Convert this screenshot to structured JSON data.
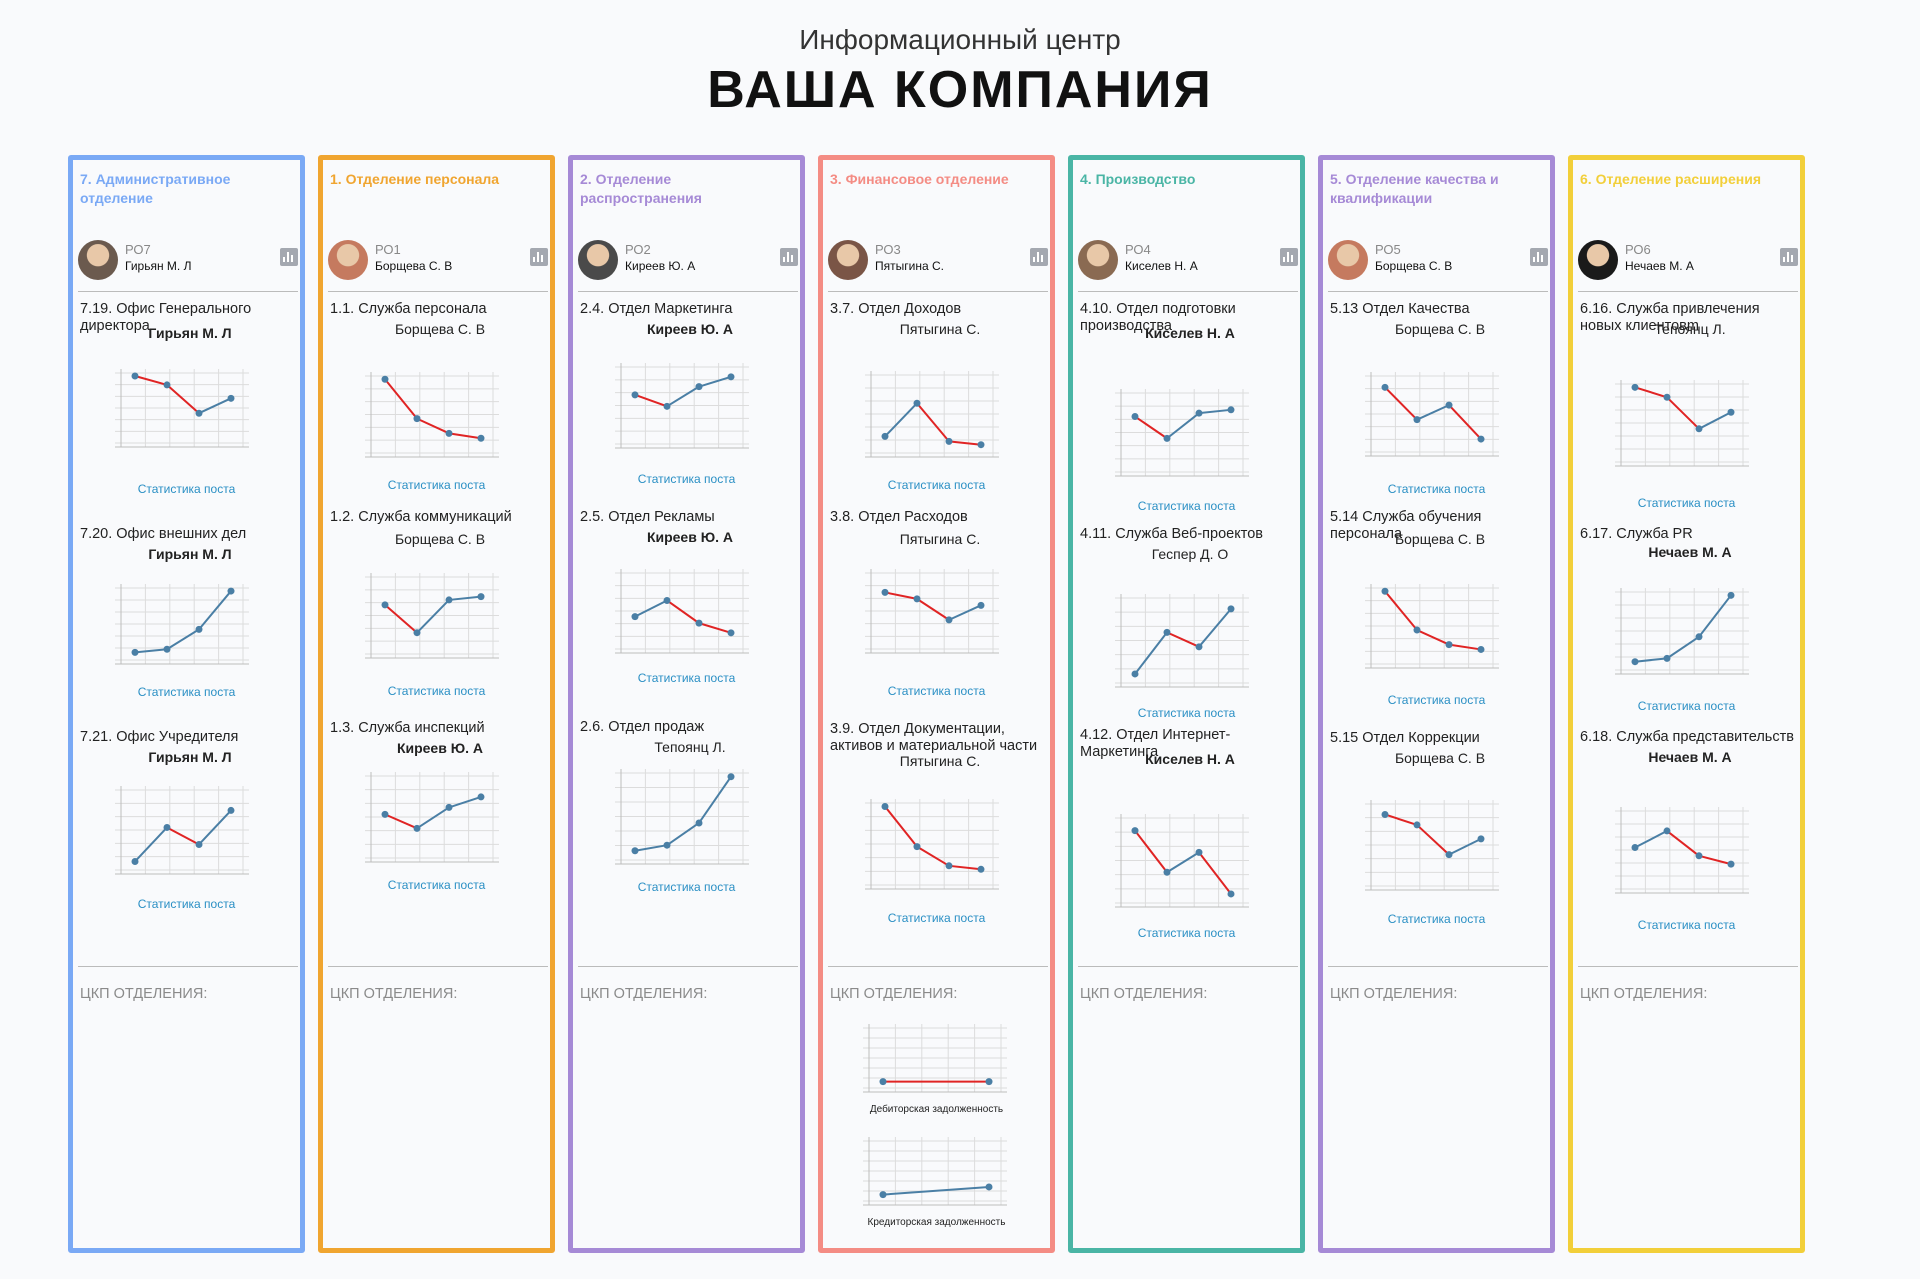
{
  "header": {
    "subtitle": "Информационный центр",
    "title": "ВАША КОМПАНИЯ"
  },
  "stat_caption": "Статистика поста",
  "ckp_label": "ЦКП ОТДЕЛЕНИЯ:",
  "colors": {
    "rise": "#4a7fa5",
    "fall": "#e02424",
    "link": "#2a8fc4"
  },
  "columns": [
    {
      "dept": "7. Административное отделение",
      "color": "#7aa9f5",
      "post_code": "РО7",
      "person": "Гирьян М. Л",
      "avatar_icon": "avatar-photo",
      "posts": [
        {
          "title": "7.19. Офис Генерального директора",
          "person": "Гирьян М. Л",
          "values": [
            5,
            4.4,
            2.5,
            3.5
          ]
        },
        {
          "title": "7.20. Офис внешних дел",
          "person": "Гирьян М. Л",
          "values": [
            1,
            1.2,
            2.5,
            5
          ]
        },
        {
          "title": "7.21. Офис Учредителя",
          "person": "Гирьян М. Л",
          "values": [
            1,
            3,
            2,
            4
          ]
        }
      ]
    },
    {
      "dept": "1. Отделение персонала",
      "color": "#f0a530",
      "post_code": "РО1",
      "person": "Борщева С. В",
      "avatar_icon": "avatar-photo",
      "posts": [
        {
          "title": "1.1. Служба персонала",
          "person": "Борщева С. В",
          "values": [
            5,
            2.6,
            1.7,
            1.4
          ]
        },
        {
          "title": "1.2. Служба коммуникаций",
          "person": "Борщева С. В",
          "values": [
            3.5,
            1.8,
            3.8,
            4
          ]
        },
        {
          "title": "1.3. Служба инспекций",
          "person": "Киреев Ю. А",
          "values": [
            3,
            2.2,
            3.4,
            4
          ]
        }
      ]
    },
    {
      "dept": "2. Отделение распространения",
      "color": "#a68ad6",
      "post_code": "РО2",
      "person": "Киреев Ю. А",
      "avatar_icon": "avatar-photo",
      "posts": [
        {
          "title": "2.4. Отдел Маркетинга",
          "person": "Киреев Ю. А",
          "values": [
            3.5,
            2.8,
            4,
            4.6
          ]
        },
        {
          "title": "2.5. Отдел Рекламы",
          "person": "Киреев Ю. А",
          "values": [
            2.5,
            3.5,
            2.1,
            1.5
          ]
        },
        {
          "title": "2.6. Отдел продаж",
          "person": "Тепоянц Л.",
          "values": [
            1,
            1.3,
            2.5,
            5
          ]
        }
      ]
    },
    {
      "dept": "3. Финансовое отделение",
      "color": "#f48c84",
      "post_code": "РО3",
      "person": "Пятыгина С.",
      "avatar_icon": "avatar-photo",
      "posts": [
        {
          "title": "3.7. Отдел Доходов",
          "person": "Пятыгина С.",
          "values": [
            1.5,
            3.5,
            1.2,
            1
          ]
        },
        {
          "title": "3.8. Отдел Расходов",
          "person": "Пятыгина С.",
          "values": [
            4,
            3.6,
            2.3,
            3.2
          ]
        },
        {
          "title": "3.9. Отдел Документации, активов и материальной части",
          "person": "Пятыгина С.",
          "values": [
            5,
            2.7,
            1.6,
            1.4
          ]
        }
      ],
      "ckp_charts": [
        {
          "title": "Дебиторская задолженность",
          "values": [
            1,
            1
          ]
        },
        {
          "title": "Кредиторская задолженность",
          "values": [
            1,
            1.6
          ]
        }
      ]
    },
    {
      "dept": "4. Производство",
      "color": "#4ab5a5",
      "post_code": "РО4",
      "person": "Киселев Н. А",
      "avatar_icon": "avatar-photo",
      "posts": [
        {
          "title": "4.10. Отдел подготовки производства",
          "person": "Киселев Н. А",
          "values": [
            3.8,
            2.5,
            4,
            4.2
          ]
        },
        {
          "title": "4.11. Служба Веб-проектов",
          "person": "Геспер Д. О",
          "values": [
            1,
            3.3,
            2.5,
            4.6
          ]
        },
        {
          "title": "4.12. Отдел Интернет-Маркетинга",
          "person": "Киселев Н. А",
          "values": [
            4.5,
            2.2,
            3.3,
            1
          ]
        }
      ]
    },
    {
      "dept": "5. Отделение качества и квалификации",
      "color": "#a68ad6",
      "post_code": "РО5",
      "person": "Борщева С. В",
      "avatar_icon": "avatar-photo",
      "posts": [
        {
          "title": "5.13 Отдел Качества",
          "person": "Борщева С. В",
          "values": [
            4.5,
            2.5,
            3.4,
            1.3
          ]
        },
        {
          "title": "5.14 Служба обучения персонала",
          "person": "Борщева С. В",
          "values": [
            5,
            2.6,
            1.7,
            1.4
          ]
        },
        {
          "title": "5.15 Отдел Коррекции",
          "person": "Борщева С. В",
          "values": [
            4.6,
            4,
            2.3,
            3.2
          ]
        }
      ]
    },
    {
      "dept": "6. Отделение расширения",
      "color": "#f2cf3a",
      "post_code": "РО6",
      "person": "Нечаев М. А",
      "avatar_icon": "avatar-photo",
      "posts": [
        {
          "title": "6.16. Служба привлечения новых клиентовm",
          "person": "Тепоянц Л.",
          "values": [
            5,
            4.4,
            2.5,
            3.5
          ]
        },
        {
          "title": "6.17. Служба PR",
          "person": "Нечаев М. А",
          "values": [
            1,
            1.2,
            2.5,
            5
          ]
        },
        {
          "title": "6.18. Служба представительств",
          "person": "Нечаев М. А",
          "values": [
            3,
            4,
            2.5,
            2
          ]
        }
      ]
    }
  ]
}
